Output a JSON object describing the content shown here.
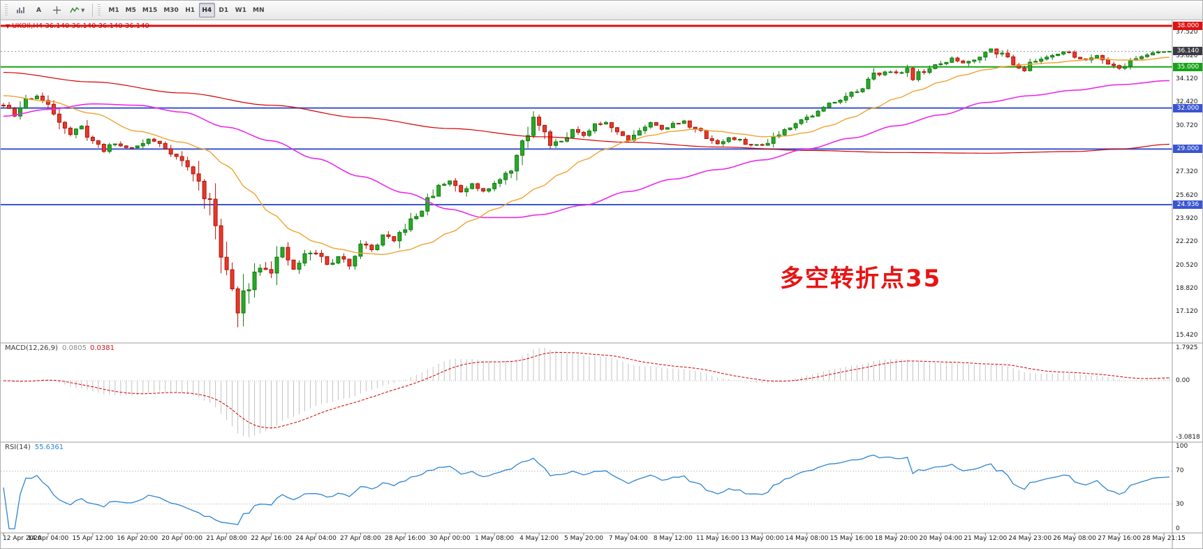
{
  "toolbar": {
    "text_tool_label": "A",
    "timeframes": [
      {
        "label": "M1",
        "selected": false
      },
      {
        "label": "M5",
        "selected": false
      },
      {
        "label": "M15",
        "selected": false
      },
      {
        "label": "M30",
        "selected": false
      },
      {
        "label": "H1",
        "selected": false
      },
      {
        "label": "H4",
        "selected": true
      },
      {
        "label": "D1",
        "selected": false
      },
      {
        "label": "W1",
        "selected": false
      },
      {
        "label": "MN",
        "selected": false
      }
    ]
  },
  "main_chart": {
    "symbol_label": "UKOIl,H4  36.140 36.140 36.140 36.140",
    "current_price": "36.140",
    "annotation": "多空转折点35",
    "annotation_color": "#e81414",
    "price_ticks": [
      37.52,
      35.82,
      34.12,
      32.42,
      30.72,
      29.02,
      27.32,
      25.62,
      23.92,
      22.22,
      20.52,
      18.82,
      17.12,
      15.42
    ],
    "hlines": [
      {
        "value": 38.0,
        "label": "38.000",
        "color": "#dd1111",
        "width": 3
      },
      {
        "value": 35.0,
        "label": "35.000",
        "color": "#17a317",
        "width": 2
      },
      {
        "value": 32.0,
        "label": "32.000",
        "color": "#3a55cf",
        "width": 2
      },
      {
        "value": 29.0,
        "label": "29.000",
        "color": "#3a55cf",
        "width": 2
      },
      {
        "value": 24.936,
        "label": "24.936",
        "color": "#3a55cf",
        "width": 2
      }
    ]
  },
  "macd_panel": {
    "name": "MACD(12,26,9)",
    "values": [
      "0.0805",
      "0.0381"
    ],
    "axis_ticks": [
      "1.7925",
      "0.00",
      "-3.0818"
    ],
    "scale_max": 1.7925,
    "scale_min": -3.0818
  },
  "rsi_panel": {
    "name": "RSI(14)",
    "value": "55.6361",
    "axis_ticks": [
      "100",
      "70",
      "30",
      "0"
    ],
    "levels": [
      70,
      30
    ]
  },
  "time_axis": {
    "labels": [
      "12 Apr 2020",
      "14 Apr 04:00",
      "15 Apr 12:00",
      "16 Apr 20:00",
      "20 Apr 00:00",
      "21 Apr 08:00",
      "22 Apr 16:00",
      "24 Apr 04:00",
      "27 Apr 08:00",
      "28 Apr 16:00",
      "30 Apr 00:00",
      "1 May 08:00",
      "4 May 12:00",
      "5 May 20:00",
      "7 May 04:00",
      "8 May 12:00",
      "11 May 16:00",
      "13 May 00:00",
      "14 May 08:00",
      "15 May 16:00",
      "18 May 20:00",
      "20 May 04:00",
      "21 May 12:00",
      "24 May 23:00",
      "26 May 08:00",
      "27 May 16:00",
      "28 May 21:15"
    ]
  },
  "chart_data": {
    "type": "candlestick",
    "symbol": "UKOIl",
    "timeframe": "H4",
    "bars": 210,
    "last_ohlc": [
      36.14,
      36.14,
      36.14,
      36.14
    ],
    "price_axis_range": [
      15.2,
      38.3
    ],
    "low_spike": {
      "index": 42,
      "price": 15.98
    },
    "close_path_anchors": [
      [
        0,
        32.2
      ],
      [
        2,
        31.4
      ],
      [
        4,
        32.6
      ],
      [
        6,
        32.9
      ],
      [
        8,
        32.1
      ],
      [
        10,
        31.2
      ],
      [
        12,
        30.1
      ],
      [
        14,
        30.6
      ],
      [
        16,
        29.6
      ],
      [
        18,
        28.9
      ],
      [
        20,
        29.4
      ],
      [
        22,
        29.1
      ],
      [
        24,
        29.2
      ],
      [
        26,
        29.7
      ],
      [
        28,
        29.4
      ],
      [
        30,
        28.8
      ],
      [
        32,
        28.1
      ],
      [
        34,
        27.2
      ],
      [
        36,
        25.8
      ],
      [
        38,
        23.6
      ],
      [
        40,
        20.2
      ],
      [
        41,
        18.4
      ],
      [
        42,
        17.0
      ],
      [
        43,
        18.2
      ],
      [
        44,
        19.3
      ],
      [
        46,
        20.6
      ],
      [
        48,
        20.2
      ],
      [
        50,
        21.6
      ],
      [
        51,
        20.8
      ],
      [
        52,
        20.2
      ],
      [
        54,
        21.2
      ],
      [
        56,
        21.5
      ],
      [
        58,
        20.5
      ],
      [
        60,
        21.1
      ],
      [
        62,
        20.6
      ],
      [
        64,
        22.2
      ],
      [
        66,
        21.6
      ],
      [
        68,
        22.7
      ],
      [
        70,
        22.2
      ],
      [
        72,
        23.3
      ],
      [
        74,
        24.1
      ],
      [
        76,
        25.2
      ],
      [
        78,
        26.2
      ],
      [
        80,
        26.7
      ],
      [
        82,
        25.9
      ],
      [
        84,
        26.5
      ],
      [
        86,
        26.0
      ],
      [
        88,
        26.4
      ],
      [
        90,
        27.0
      ],
      [
        92,
        28.4
      ],
      [
        94,
        30.1
      ],
      [
        95,
        31.2
      ],
      [
        96,
        30.9
      ],
      [
        97,
        30.1
      ],
      [
        98,
        29.4
      ],
      [
        100,
        29.7
      ],
      [
        102,
        30.4
      ],
      [
        104,
        29.9
      ],
      [
        106,
        30.7
      ],
      [
        108,
        31.0
      ],
      [
        110,
        30.3
      ],
      [
        112,
        29.7
      ],
      [
        114,
        30.4
      ],
      [
        116,
        30.9
      ],
      [
        118,
        30.5
      ],
      [
        120,
        30.8
      ],
      [
        122,
        31.0
      ],
      [
        124,
        30.5
      ],
      [
        126,
        29.9
      ],
      [
        128,
        29.4
      ],
      [
        130,
        29.8
      ],
      [
        132,
        29.6
      ],
      [
        134,
        29.3
      ],
      [
        136,
        29.3
      ],
      [
        138,
        29.9
      ],
      [
        140,
        30.4
      ],
      [
        142,
        31.0
      ],
      [
        144,
        31.3
      ],
      [
        146,
        31.7
      ],
      [
        148,
        32.3
      ],
      [
        150,
        32.7
      ],
      [
        152,
        33.1
      ],
      [
        154,
        33.3
      ],
      [
        156,
        34.4
      ],
      [
        158,
        34.7
      ],
      [
        160,
        34.5
      ],
      [
        162,
        34.9
      ],
      [
        163,
        34.2
      ],
      [
        164,
        34.5
      ],
      [
        166,
        34.9
      ],
      [
        168,
        35.2
      ],
      [
        170,
        35.6
      ],
      [
        172,
        35.3
      ],
      [
        174,
        35.6
      ],
      [
        176,
        36.0
      ],
      [
        177,
        36.4
      ],
      [
        178,
        36.1
      ],
      [
        180,
        35.7
      ],
      [
        182,
        35.0
      ],
      [
        183,
        34.8
      ],
      [
        184,
        35.2
      ],
      [
        186,
        35.6
      ],
      [
        188,
        35.9
      ],
      [
        190,
        36.1
      ],
      [
        192,
        35.8
      ],
      [
        194,
        35.5
      ],
      [
        196,
        35.9
      ],
      [
        198,
        35.3
      ],
      [
        200,
        34.9
      ],
      [
        202,
        35.4
      ],
      [
        204,
        35.8
      ],
      [
        206,
        36.0
      ],
      [
        208,
        36.1
      ],
      [
        209,
        36.14
      ]
    ],
    "ma_series": [
      {
        "name": "ma-slow-red",
        "color": "#d40000",
        "width": 1.2,
        "anchors": [
          [
            0,
            34.6
          ],
          [
            16,
            33.9
          ],
          [
            32,
            33.1
          ],
          [
            48,
            32.2
          ],
          [
            64,
            31.3
          ],
          [
            80,
            30.5
          ],
          [
            96,
            29.9
          ],
          [
            112,
            29.5
          ],
          [
            128,
            29.15
          ],
          [
            144,
            28.9
          ],
          [
            160,
            28.75
          ],
          [
            176,
            28.7
          ],
          [
            192,
            28.82
          ],
          [
            200,
            29.0
          ],
          [
            209,
            29.35
          ]
        ]
      },
      {
        "name": "ma-mid-magenta",
        "color": "#ea2bea",
        "width": 1.6,
        "anchors": [
          [
            0,
            31.4
          ],
          [
            8,
            31.9
          ],
          [
            16,
            32.3
          ],
          [
            24,
            32.2
          ],
          [
            32,
            31.7
          ],
          [
            40,
            30.6
          ],
          [
            48,
            29.6
          ],
          [
            56,
            28.3
          ],
          [
            64,
            27.0
          ],
          [
            72,
            25.8
          ],
          [
            80,
            24.6
          ],
          [
            86,
            24.0
          ],
          [
            92,
            24.0
          ],
          [
            96,
            24.2
          ],
          [
            104,
            24.9
          ],
          [
            112,
            25.9
          ],
          [
            120,
            26.8
          ],
          [
            128,
            27.5
          ],
          [
            136,
            28.2
          ],
          [
            144,
            29.0
          ],
          [
            152,
            29.8
          ],
          [
            160,
            30.7
          ],
          [
            168,
            31.5
          ],
          [
            176,
            32.4
          ],
          [
            184,
            32.9
          ],
          [
            192,
            33.3
          ],
          [
            200,
            33.7
          ],
          [
            209,
            34.0
          ]
        ]
      },
      {
        "name": "ma-fast-orange",
        "color": "#efa231",
        "width": 1.4,
        "anchors": [
          [
            0,
            32.9
          ],
          [
            8,
            32.5
          ],
          [
            16,
            31.6
          ],
          [
            24,
            30.3
          ],
          [
            32,
            29.5
          ],
          [
            36,
            29.0
          ],
          [
            40,
            27.8
          ],
          [
            44,
            26.0
          ],
          [
            48,
            24.3
          ],
          [
            52,
            23.0
          ],
          [
            56,
            22.2
          ],
          [
            60,
            21.7
          ],
          [
            64,
            21.4
          ],
          [
            68,
            21.3
          ],
          [
            72,
            21.6
          ],
          [
            76,
            22.1
          ],
          [
            80,
            22.9
          ],
          [
            84,
            23.8
          ],
          [
            88,
            24.6
          ],
          [
            92,
            25.3
          ],
          [
            96,
            26.2
          ],
          [
            100,
            27.2
          ],
          [
            104,
            28.2
          ],
          [
            108,
            29.0
          ],
          [
            112,
            29.6
          ],
          [
            116,
            30.0
          ],
          [
            120,
            30.3
          ],
          [
            124,
            30.45
          ],
          [
            128,
            30.3
          ],
          [
            132,
            30.1
          ],
          [
            136,
            29.9
          ],
          [
            140,
            29.95
          ],
          [
            144,
            30.2
          ],
          [
            148,
            30.7
          ],
          [
            152,
            31.3
          ],
          [
            156,
            32.0
          ],
          [
            160,
            32.7
          ],
          [
            164,
            33.3
          ],
          [
            168,
            33.9
          ],
          [
            172,
            34.4
          ],
          [
            176,
            34.8
          ],
          [
            180,
            35.05
          ],
          [
            184,
            35.2
          ],
          [
            188,
            35.3
          ],
          [
            192,
            35.45
          ],
          [
            196,
            35.6
          ],
          [
            200,
            35.5
          ],
          [
            204,
            35.5
          ],
          [
            209,
            35.7
          ]
        ]
      }
    ],
    "colors": {
      "up": "#2aa82a",
      "up_border": "#0d7a0d",
      "down": "#e8382b",
      "down_border": "#b01205",
      "macd_hist": "#c2c2c2",
      "macd_signal": "#d40000",
      "rsi_line": "#2d85d0"
    },
    "indicators": [
      {
        "type": "MACD",
        "params": [
          12,
          26,
          9
        ],
        "current_values": [
          0.0805,
          0.0381
        ],
        "panel_range": [
          -3.0818,
          1.7925
        ]
      },
      {
        "type": "RSI",
        "params": [
          14
        ],
        "current_value": 55.6361,
        "levels": [
          70,
          30
        ],
        "range": [
          0,
          100
        ]
      }
    ]
  }
}
